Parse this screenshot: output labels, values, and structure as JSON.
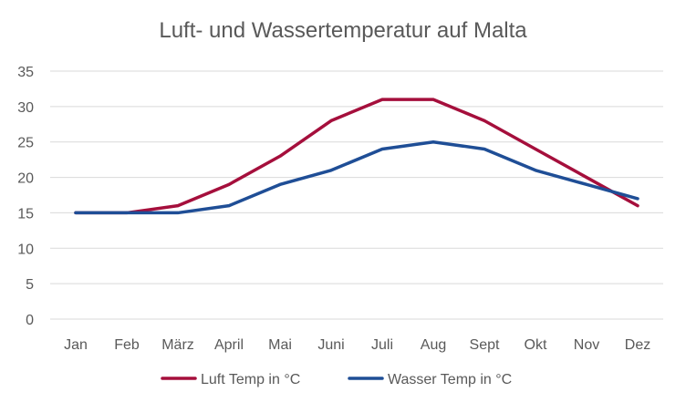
{
  "chart_data": {
    "type": "line",
    "title": "Luft- und Wassertemperatur auf Malta",
    "categories": [
      "Jan",
      "Feb",
      "März",
      "April",
      "Mai",
      "Juni",
      "Juli",
      "Aug",
      "Sept",
      "Okt",
      "Nov",
      "Dez"
    ],
    "series": [
      {
        "name": "Luft Temp in °C",
        "color": "#A50F3C",
        "values": [
          15,
          15,
          16,
          19,
          23,
          28,
          31,
          31,
          28,
          24,
          20,
          16
        ]
      },
      {
        "name": "Wasser Temp in °C",
        "color": "#1F4E96",
        "values": [
          15,
          15,
          15,
          16,
          19,
          21,
          24,
          25,
          24,
          21,
          19,
          17
        ]
      }
    ],
    "ylim": [
      0,
      35
    ],
    "yticks": [
      0,
      5,
      10,
      15,
      20,
      25,
      30,
      35
    ],
    "grid": "horizontal",
    "legend_position": "bottom"
  }
}
